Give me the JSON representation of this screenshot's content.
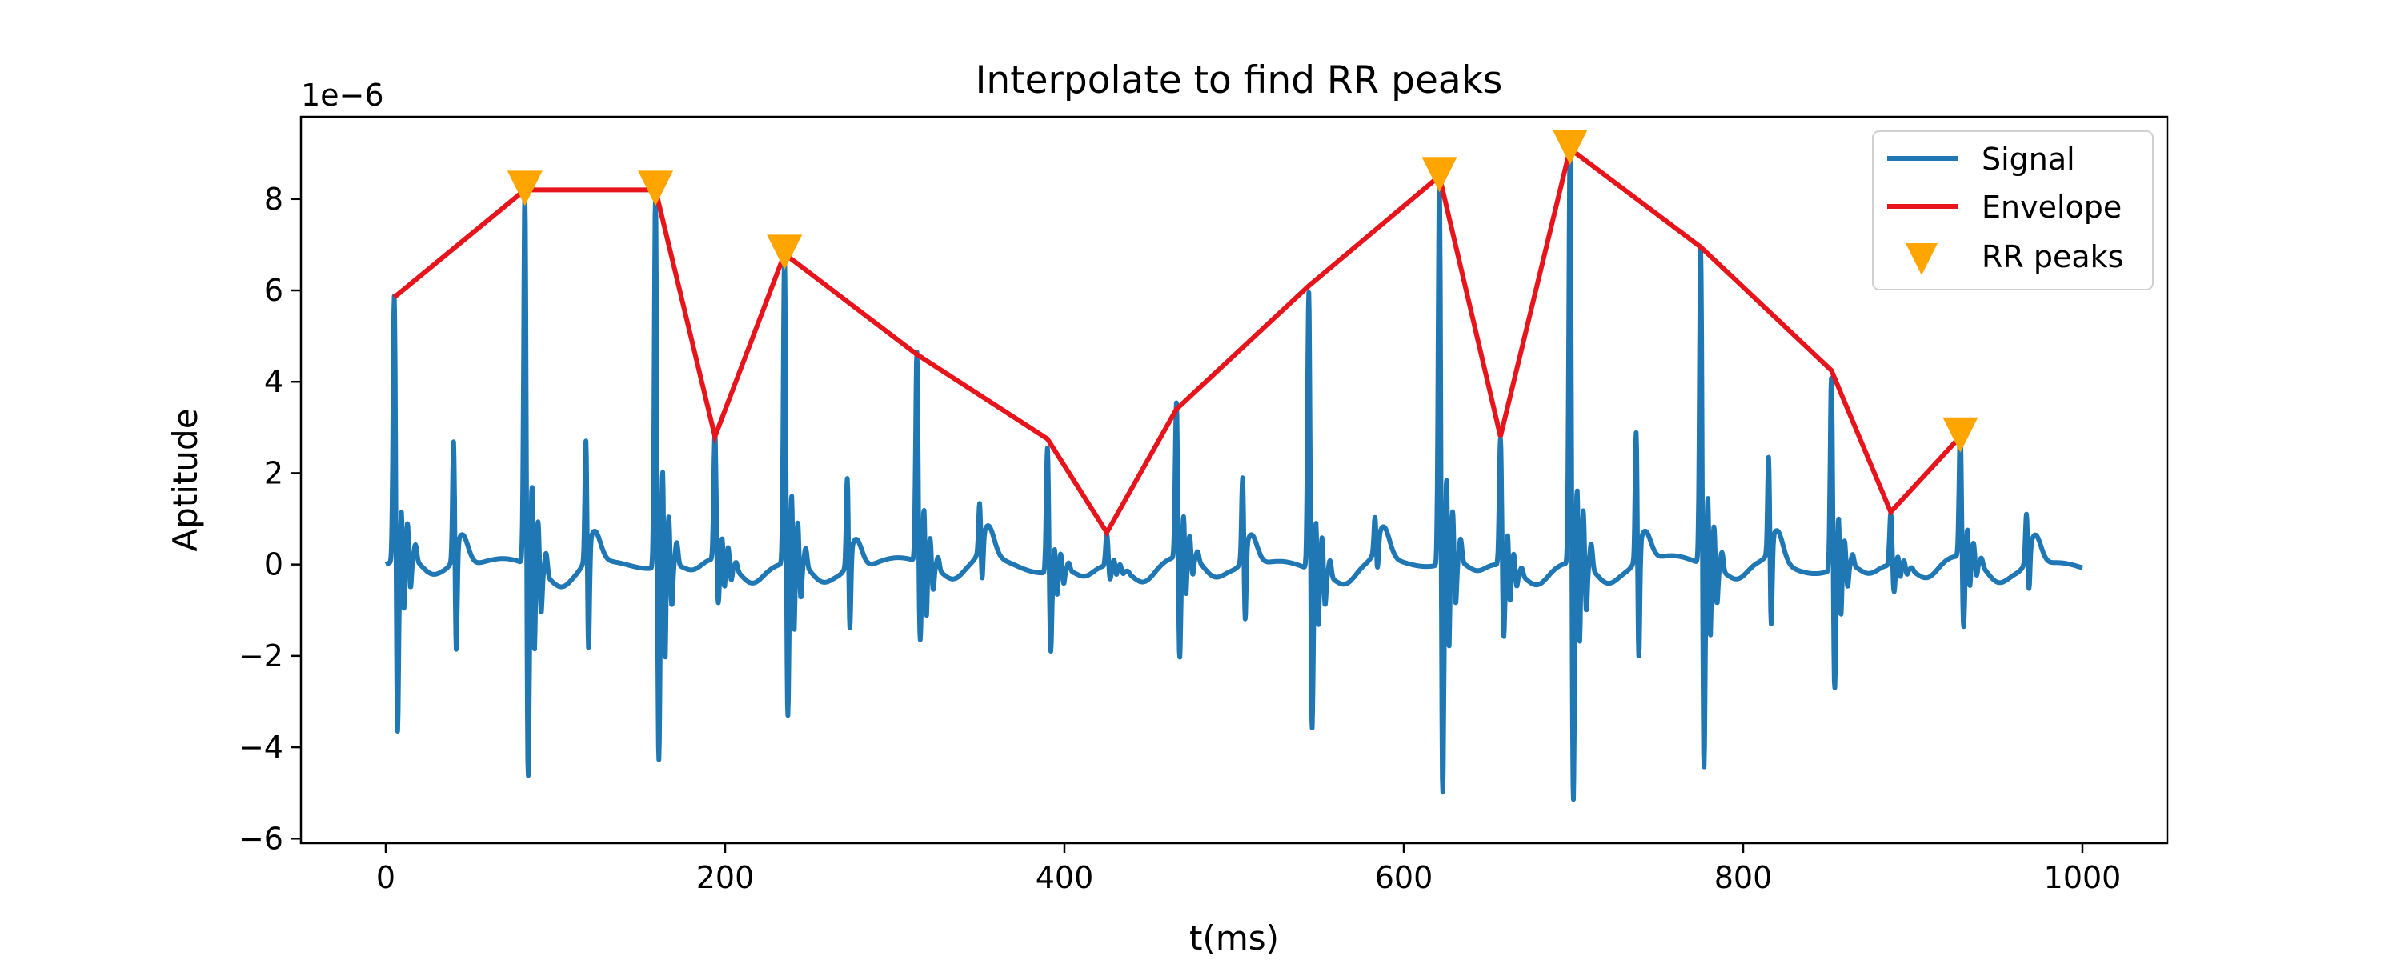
{
  "chart_data": {
    "type": "line",
    "title": "Interpolate to find RR peaks",
    "xlabel": "t(ms)",
    "ylabel": "Aptitude",
    "y_offset_text": "1e−6",
    "xlim": [
      -50,
      1050
    ],
    "ylim": [
      -6.1,
      9.8
    ],
    "xticks": [
      0,
      200,
      400,
      600,
      800,
      1000
    ],
    "xtick_labels": [
      "0",
      "200",
      "400",
      "600",
      "800",
      "1000"
    ],
    "yticks": [
      -6,
      -4,
      -2,
      0,
      2,
      4,
      6,
      8
    ],
    "ytick_labels": [
      "−6",
      "−4",
      "−2",
      "0",
      "2",
      "4",
      "6",
      "8"
    ],
    "grid": false,
    "legend_position": "top-right",
    "colors": {
      "signal": "#1f77b4",
      "envelope": "#e8141c",
      "peaks": "#ffa500"
    },
    "beat_times": [
      5,
      82,
      159,
      194,
      235,
      313,
      390,
      425,
      466,
      544,
      621,
      657,
      698,
      775,
      852,
      887,
      928
    ],
    "series": [
      {
        "name": "Signal",
        "style": "line",
        "x_range": [
          0,
          1000
        ],
        "beats": [
          {
            "t": 5,
            "peak": 5.85,
            "trough": -3.9
          },
          {
            "t": 82,
            "peak": 8.2,
            "trough": -4.8
          },
          {
            "t": 159,
            "peak": 8.2,
            "trough": -4.4
          },
          {
            "t": 194,
            "peak": 2.8,
            "trough": -1.0
          },
          {
            "t": 235,
            "peak": 6.8,
            "trough": -3.5
          },
          {
            "t": 313,
            "peak": 4.6,
            "trough": -1.8
          },
          {
            "t": 390,
            "peak": 2.75,
            "trough": -1.8
          },
          {
            "t": 425,
            "peak": 0.7,
            "trough": -0.3
          },
          {
            "t": 466,
            "peak": 3.4,
            "trough": -2.3
          },
          {
            "t": 544,
            "peak": 6.1,
            "trough": -3.6
          },
          {
            "t": 621,
            "peak": 8.5,
            "trough": -5.2
          },
          {
            "t": 657,
            "peak": 2.8,
            "trough": -1.6
          },
          {
            "t": 698,
            "peak": 9.1,
            "trough": -5.4
          },
          {
            "t": 775,
            "peak": 6.95,
            "trough": -4.6
          },
          {
            "t": 852,
            "peak": 4.25,
            "trough": -2.7
          },
          {
            "t": 887,
            "peak": 1.15,
            "trough": -0.6
          },
          {
            "t": 928,
            "peak": 2.8,
            "trough": -1.6
          }
        ],
        "secondary_bumps": [
          {
            "t": 40,
            "peak": 2.6
          },
          {
            "t": 118,
            "peak": 2.6
          },
          {
            "t": 272,
            "peak": 1.9
          },
          {
            "t": 350,
            "peak": 1.0
          },
          {
            "t": 505,
            "peak": 1.8
          },
          {
            "t": 583,
            "peak": 0.7
          },
          {
            "t": 737,
            "peak": 2.8
          },
          {
            "t": 815,
            "peak": 2.1
          },
          {
            "t": 967,
            "peak": 1.0
          }
        ]
      },
      {
        "name": "Envelope",
        "style": "line",
        "x": [
          5,
          82,
          159,
          194,
          235,
          313,
          390,
          425,
          466,
          544,
          621,
          657,
          698,
          775,
          852,
          887,
          928
        ],
        "y": [
          5.85,
          8.2,
          8.2,
          2.8,
          6.8,
          4.6,
          2.75,
          0.7,
          3.4,
          6.1,
          8.5,
          2.8,
          9.1,
          6.95,
          4.25,
          1.15,
          2.8
        ]
      },
      {
        "name": "RR peaks",
        "style": "marker",
        "marker": "triangle-down",
        "x": [
          82,
          159,
          235,
          621,
          698,
          928
        ],
        "y": [
          8.2,
          8.2,
          6.8,
          8.5,
          9.1,
          2.8
        ]
      }
    ]
  }
}
